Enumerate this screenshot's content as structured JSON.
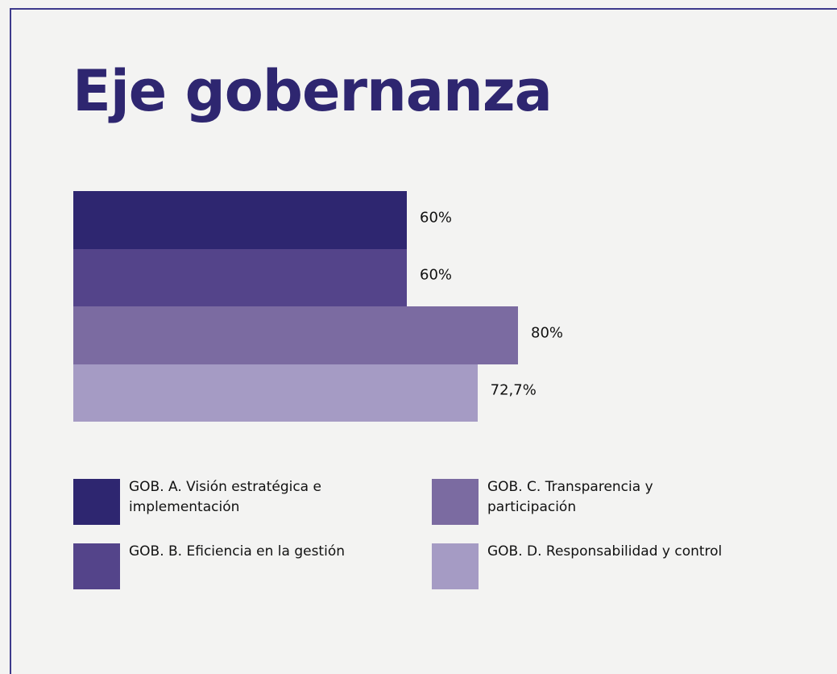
{
  "chart_data": {
    "type": "bar",
    "orientation": "horizontal",
    "title": "Eje gobernanza",
    "categories": [
      "GOB. A. Visión estratégica e implementación",
      "GOB. B. Eficiencia en la gestión",
      "GOB. C. Transparencia y participación",
      "GOB. D. Responsabilidad y control"
    ],
    "values": [
      60,
      60,
      80,
      72.7
    ],
    "value_labels": [
      "60%",
      "60%",
      "80%",
      "72,7%"
    ],
    "colors": [
      "#2e2670",
      "#54448a",
      "#7b6ba1",
      "#a59bc4"
    ]
  }
}
